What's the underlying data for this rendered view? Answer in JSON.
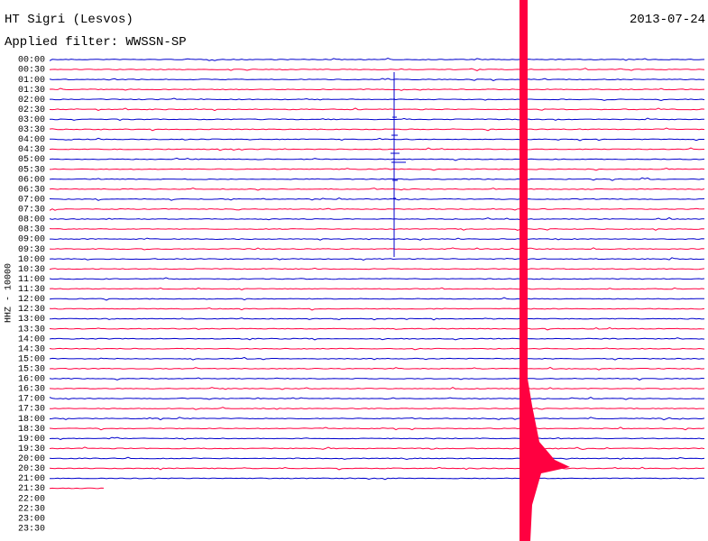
{
  "header": {
    "title": "HT Sigri (Lesvos)",
    "date": "2013-07-24",
    "filter": "Applied filter: WWSSN-SP"
  },
  "axis_label": "HHZ - 10000",
  "times": [
    "00:00",
    "00:30",
    "01:00",
    "01:30",
    "02:00",
    "02:30",
    "03:00",
    "03:30",
    "04:00",
    "04:30",
    "05:00",
    "05:30",
    "06:00",
    "06:30",
    "07:00",
    "07:30",
    "08:00",
    "08:30",
    "09:00",
    "09:30",
    "10:00",
    "10:30",
    "11:00",
    "11:30",
    "12:00",
    "12:30",
    "13:00",
    "13:30",
    "14:00",
    "14:30",
    "15:00",
    "15:30",
    "16:00",
    "16:30",
    "17:00",
    "17:30",
    "18:00",
    "18:30",
    "19:00",
    "19:30",
    "20:00",
    "20:30",
    "21:00",
    "21:30",
    "22:00",
    "22:30",
    "23:00",
    "23:30"
  ]
}
